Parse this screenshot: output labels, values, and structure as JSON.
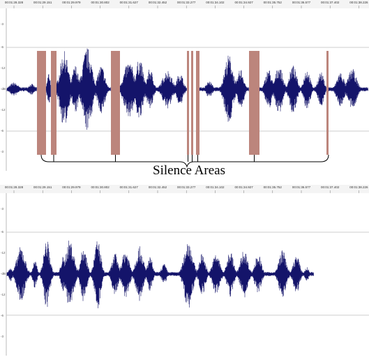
{
  "top_panel": {
    "ruler": [
      "00:01:28.328",
      "00:01:29.151",
      "00:01:29.979",
      "00:01:30.802",
      "00:01:31.627",
      "00:01:32.452",
      "00:01:33.277",
      "00:01:34.102",
      "00:01:34.927",
      "00:01:35.752",
      "00:01:36.577",
      "00:01:37.402",
      "00:01:38.226",
      "00:01:39.053"
    ],
    "scale": [
      "-3",
      "-6",
      "-12",
      "-dB",
      "-12",
      "-6",
      "-3"
    ],
    "annotation": "Silence Areas"
  },
  "bottom_panel": {
    "ruler": [
      "00:01:28.328",
      "00:01:29.151",
      "00:01:29.979",
      "00:01:30.802",
      "00:01:31.627",
      "00:01:32.452",
      "00:01:33.277",
      "00:01:34.102",
      "00:01:34.927",
      "00:01:35.752",
      "00:01:36.577",
      "00:01:37.402",
      "00:01:38.226",
      "00:01:39.053"
    ],
    "scale": [
      "-3",
      "-6",
      "-12",
      "-dB",
      "-12",
      "-6",
      "-3"
    ]
  }
}
